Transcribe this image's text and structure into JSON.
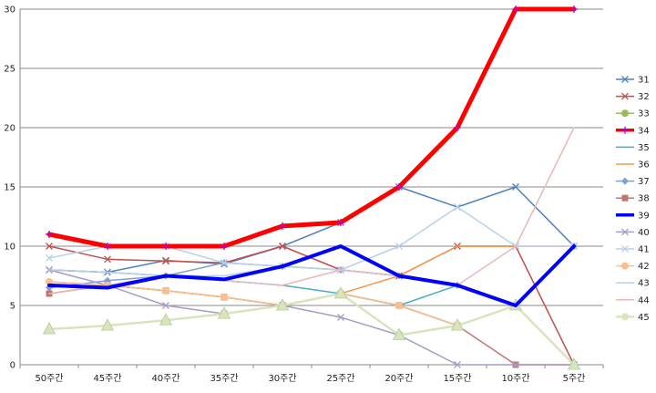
{
  "chart_data": {
    "type": "line",
    "categories": [
      "50주간",
      "45주간",
      "40주간",
      "35주간",
      "30주간",
      "25주간",
      "20주간",
      "15주간",
      "10주간",
      "5주간"
    ],
    "ylim": [
      0,
      30
    ],
    "yticks": [
      0,
      5,
      10,
      15,
      20,
      25,
      30
    ],
    "grid": "horizontal",
    "legend_position": "right",
    "series": [
      {
        "name": "31",
        "color": "#4f81bd",
        "marker": "x",
        "values": [
          8,
          7.8,
          8.8,
          8.5,
          10,
          12,
          15,
          13.3,
          15,
          10
        ]
      },
      {
        "name": "32",
        "color": "#c0504d",
        "marker": "x",
        "values": [
          10,
          8.9,
          8.75,
          8.6,
          10,
          8,
          7.5,
          10,
          10,
          0
        ]
      },
      {
        "name": "33",
        "color": "#9bbb59",
        "marker": "circle",
        "values": [
          7,
          6.7,
          6.25,
          5.7,
          5,
          6,
          5,
          3.3,
          5,
          0
        ]
      },
      {
        "name": "34",
        "color": "#ff0000",
        "marker": "plus",
        "width": 5,
        "values": [
          11,
          10,
          10,
          10,
          11.7,
          12,
          15,
          20,
          30,
          30
        ]
      },
      {
        "name": "35",
        "color": "#4bacc6",
        "marker": "none",
        "values": [
          8,
          7.8,
          7.5,
          7.1,
          6.7,
          6,
          5,
          6.7,
          5,
          10
        ]
      },
      {
        "name": "36",
        "color": "#f79646",
        "marker": "none",
        "values": [
          6,
          6.7,
          6.25,
          5.7,
          5,
          6,
          7.5,
          10,
          10,
          10
        ]
      },
      {
        "name": "37",
        "color": "#7f9fcf",
        "marker": "diamond",
        "values": [
          6.5,
          7.1,
          7.5,
          8.6,
          8.3,
          8,
          7.5,
          6.7,
          5,
          10
        ]
      },
      {
        "name": "38",
        "color": "#c0766f",
        "marker": "square",
        "values": [
          6,
          6.7,
          6.25,
          5.7,
          5,
          6,
          5,
          3.3,
          0,
          0
        ]
      },
      {
        "name": "39",
        "color": "#0000ff",
        "marker": "none",
        "width": 4,
        "values": [
          6.7,
          6.5,
          7.5,
          7.2,
          8.3,
          10,
          7.5,
          6.7,
          5,
          10
        ]
      },
      {
        "name": "40",
        "color": "#a99bc6",
        "marker": "x",
        "values": [
          8,
          6.7,
          5,
          4.3,
          5,
          4,
          2.5,
          0,
          0,
          0
        ]
      },
      {
        "name": "41",
        "color": "#b8d0ea",
        "marker": "x",
        "values": [
          9,
          10,
          10,
          8.6,
          8.3,
          8,
          10,
          13.3,
          10,
          10
        ]
      },
      {
        "name": "42",
        "color": "#fabf8f",
        "marker": "circle",
        "values": [
          7,
          6.7,
          6.25,
          5.7,
          5,
          6,
          5,
          3.3,
          5,
          0
        ]
      },
      {
        "name": "43",
        "color": "#b9cde5",
        "marker": "none",
        "values": [
          8,
          7.8,
          7.5,
          7.5,
          8.3,
          8,
          7.5,
          6.7,
          5,
          10
        ]
      },
      {
        "name": "44",
        "color": "#e6b9b8",
        "marker": "none",
        "values": [
          6,
          6.7,
          7.5,
          7.1,
          6.7,
          8,
          7.5,
          6.7,
          10,
          20
        ]
      },
      {
        "name": "45",
        "color": "#d7e4bd",
        "marker": "triangle",
        "width": 2.5,
        "values": [
          3,
          3.3,
          3.75,
          4.3,
          5,
          6,
          2.5,
          3.3,
          5,
          0
        ]
      }
    ]
  }
}
